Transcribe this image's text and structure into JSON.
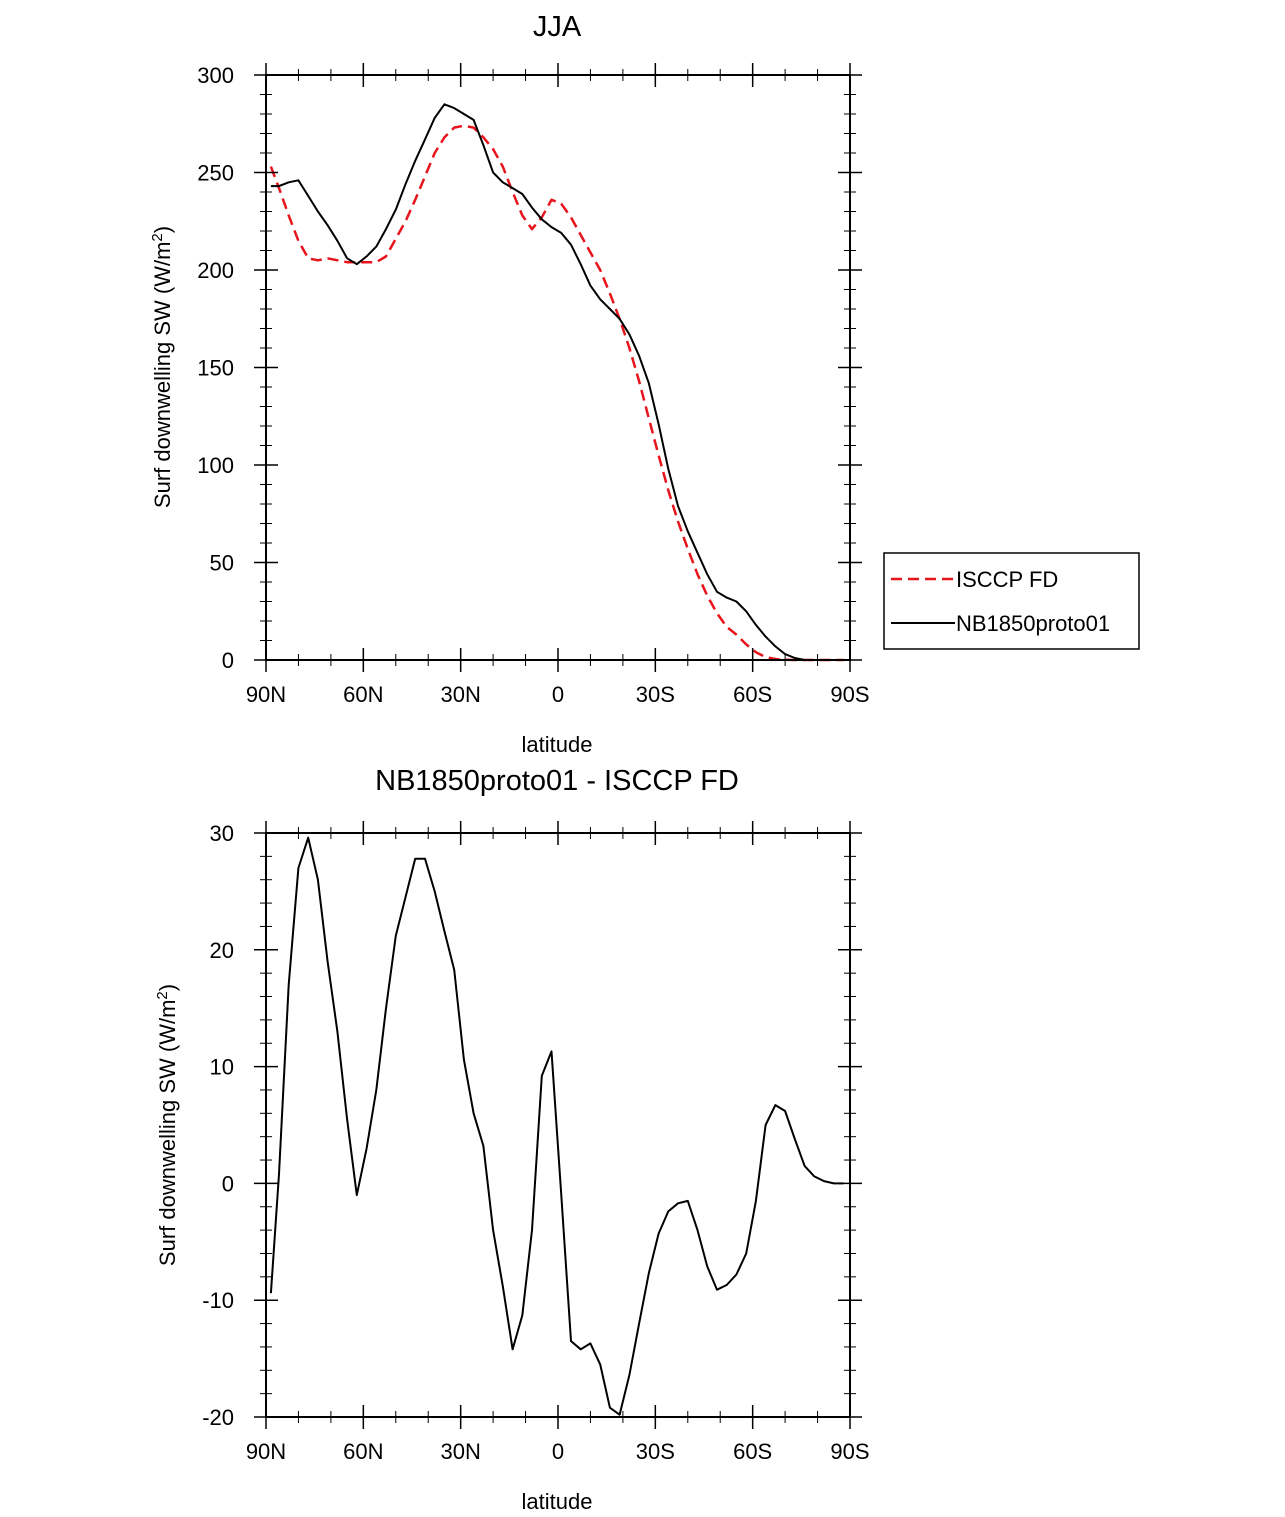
{
  "chart_data": [
    {
      "type": "line",
      "title": "JJA",
      "xlabel": "latitude",
      "ylabel_main": "Surf downwelling SW (W/m",
      "ylabel_sup": "2",
      "ylabel_tail": ")",
      "xlim": [
        90,
        -90
      ],
      "ylim": [
        0,
        300
      ],
      "xticks": [
        {
          "value": 90,
          "label": "90N"
        },
        {
          "value": 60,
          "label": "60N"
        },
        {
          "value": 30,
          "label": "30N"
        },
        {
          "value": 0,
          "label": "0"
        },
        {
          "value": -30,
          "label": "30S"
        },
        {
          "value": -60,
          "label": "60S"
        },
        {
          "value": -90,
          "label": "90S"
        }
      ],
      "yticks": [
        {
          "value": 0,
          "label": "0"
        },
        {
          "value": 50,
          "label": "50"
        },
        {
          "value": 100,
          "label": "100"
        },
        {
          "value": 150,
          "label": "150"
        },
        {
          "value": 200,
          "label": "200"
        },
        {
          "value": 250,
          "label": "250"
        },
        {
          "value": 300,
          "label": "300"
        }
      ],
      "legend_position": "right",
      "series": [
        {
          "name": "ISCCP FD",
          "color": "#e8141c",
          "dash": "dashed",
          "x": [
            88.5,
            86,
            83,
            80,
            77,
            74,
            71,
            68,
            65,
            62,
            59,
            56,
            53,
            50,
            47,
            44,
            41,
            38,
            35,
            32,
            29,
            26,
            23,
            20,
            17,
            14,
            11,
            8,
            5,
            2,
            -1,
            -4,
            -7,
            -10,
            -13,
            -16,
            -19,
            -22,
            -25,
            -28,
            -31,
            -34,
            -37,
            -40,
            -43,
            -46,
            -49,
            -52,
            -55,
            -58,
            -61,
            -64,
            -67,
            -70,
            -73,
            -76,
            -79,
            -82,
            -85,
            -88
          ],
          "values": [
            253,
            242,
            228,
            215,
            206,
            205,
            206,
            205,
            204,
            204,
            204,
            204,
            207,
            216,
            225,
            236,
            248,
            260,
            268,
            273,
            274,
            273,
            268,
            262,
            253,
            240,
            228,
            221,
            227,
            236,
            234,
            227,
            218,
            209,
            200,
            188,
            175,
            160,
            143,
            124,
            105,
            87,
            71,
            57,
            44,
            33,
            24,
            17,
            13,
            8,
            4,
            1.5,
            0.5,
            0.1,
            0,
            0,
            0,
            0,
            0,
            0
          ]
        },
        {
          "name": "NB1850proto01",
          "color": "#000000",
          "dash": "solid",
          "x": [
            88.5,
            86,
            83,
            80,
            77,
            74,
            71,
            68,
            65,
            62,
            59,
            56,
            53,
            50,
            47,
            44,
            41,
            38,
            35,
            32,
            29,
            26,
            23,
            20,
            17,
            14,
            11,
            8,
            5,
            2,
            -1,
            -4,
            -7,
            -10,
            -13,
            -16,
            -19,
            -22,
            -25,
            -28,
            -31,
            -34,
            -37,
            -40,
            -43,
            -46,
            -49,
            -52,
            -55,
            -58,
            -61,
            -64,
            -67,
            -70,
            -73,
            -76,
            -79,
            -82,
            -85,
            -88
          ],
          "values": [
            243,
            243,
            245,
            246,
            238,
            230,
            223,
            215,
            206,
            203,
            207,
            212,
            221,
            231,
            244,
            256,
            267,
            278,
            285,
            283,
            280,
            277,
            264,
            250,
            245,
            242,
            239,
            232,
            226,
            222,
            219,
            213,
            203,
            192,
            185,
            180,
            175,
            167,
            156,
            142,
            121,
            98,
            79,
            66,
            55,
            44,
            35,
            32,
            30,
            25,
            18,
            12,
            7,
            3,
            1,
            0,
            0,
            0,
            0,
            0
          ]
        }
      ]
    },
    {
      "type": "line",
      "title": "NB1850proto01 - ISCCP FD",
      "xlabel": "latitude",
      "ylabel_main": "Surf downwelling SW (W/m",
      "ylabel_sup": "2",
      "ylabel_tail": ")",
      "xlim": [
        90,
        -90
      ],
      "ylim": [
        -20,
        30
      ],
      "xticks": [
        {
          "value": 90,
          "label": "90N"
        },
        {
          "value": 60,
          "label": "60N"
        },
        {
          "value": 30,
          "label": "30N"
        },
        {
          "value": 0,
          "label": "0"
        },
        {
          "value": -30,
          "label": "30S"
        },
        {
          "value": -60,
          "label": "60S"
        },
        {
          "value": -90,
          "label": "90S"
        }
      ],
      "yticks": [
        {
          "value": -20,
          "label": "-20"
        },
        {
          "value": -10,
          "label": "-10"
        },
        {
          "value": 0,
          "label": "0"
        },
        {
          "value": 10,
          "label": "10"
        },
        {
          "value": 20,
          "label": "20"
        },
        {
          "value": 30,
          "label": "30"
        }
      ],
      "series": [
        {
          "name": "NB1850proto01 - ISCCP FD",
          "color": "#000000",
          "dash": "solid",
          "x": [
            88.5,
            86,
            83,
            80,
            77,
            74,
            71,
            68,
            65,
            62,
            59,
            56,
            53,
            50,
            47,
            44,
            41,
            38,
            35,
            32,
            29,
            26,
            23,
            20,
            17,
            14,
            11,
            8,
            5,
            2,
            -1,
            -4,
            -7,
            -10,
            -13,
            -16,
            -19,
            -22,
            -25,
            -28,
            -31,
            -34,
            -37,
            -40,
            -43,
            -46,
            -49,
            -52,
            -55,
            -58,
            -61,
            -64,
            -67,
            -70,
            -73,
            -76,
            -79,
            -82,
            -85,
            -88
          ],
          "values": [
            -9.4,
            0.8,
            17,
            27,
            29.6,
            26,
            19,
            13,
            5.5,
            -1,
            3,
            8,
            15,
            21.2,
            24.5,
            27.8,
            27.8,
            25,
            21.6,
            18.3,
            10.6,
            6,
            3.2,
            -4,
            -8.8,
            -14.2,
            -11.3,
            -4,
            9.2,
            11.3,
            -0.9,
            -13.5,
            -14.2,
            -13.7,
            -15.5,
            -19.2,
            -19.8,
            -16.4,
            -12,
            -7.7,
            -4.3,
            -2.4,
            -1.7,
            -1.5,
            -4,
            -7.1,
            -9.1,
            -8.7,
            -7.8,
            -6,
            -1.5,
            5,
            6.7,
            6.2,
            3.8,
            1.5,
            0.6,
            0.2,
            0,
            0
          ]
        }
      ]
    }
  ]
}
